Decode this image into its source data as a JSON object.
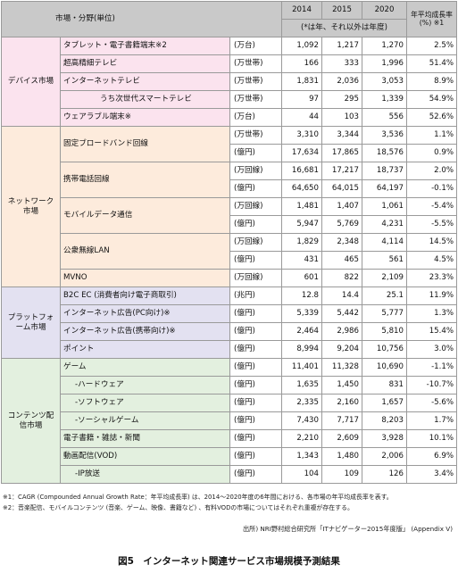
{
  "header": {
    "title": "市場・分野(単位)",
    "years": [
      "2014",
      "2015",
      "2020"
    ],
    "subnote": "(*は年、それ以外は年度)",
    "cagr": "年平均成長率(%) ※1"
  },
  "colors": {
    "device": "#fbe3ee",
    "network": "#fdebdc",
    "platform": "#e3e1f1",
    "content": "#e3f0df",
    "header": "#c9c9c9"
  },
  "device": {
    "label": "デバイス市場",
    "rows": [
      {
        "name": "タブレット・電子書籍端末※2",
        "unit": "(万台)",
        "v14": "1,092",
        "v15": "1,217",
        "v20": "1,270",
        "cagr": "2.5%"
      },
      {
        "name": "超高精細テレビ",
        "unit": "(万世帯)",
        "v14": "166",
        "v15": "333",
        "v20": "1,996",
        "cagr": "51.4%"
      },
      {
        "name": "インターネットテレビ",
        "unit": "(万世帯)",
        "v14": "1,831",
        "v15": "2,036",
        "v20": "3,053",
        "cagr": "8.9%"
      },
      {
        "name": "うち次世代スマートテレビ",
        "unit": "(万世帯)",
        "v14": "97",
        "v15": "295",
        "v20": "1,339",
        "cagr": "54.9%"
      },
      {
        "name": "ウェアラブル端末※",
        "unit": "(万台)",
        "v14": "44",
        "v15": "103",
        "v20": "556",
        "cagr": "52.6%"
      }
    ]
  },
  "network": {
    "label": "ネットワーク市場",
    "rows": [
      {
        "name": "固定ブロードバンド回線",
        "unit": "(万世帯)",
        "v14": "3,310",
        "v15": "3,344",
        "v20": "3,536",
        "cagr": "1.1%"
      },
      {
        "name": "",
        "unit": "(億円)",
        "v14": "17,634",
        "v15": "17,865",
        "v20": "18,576",
        "cagr": "0.9%"
      },
      {
        "name": "携帯電話回線",
        "unit": "(万回線)",
        "v14": "16,681",
        "v15": "17,217",
        "v20": "18,737",
        "cagr": "2.0%"
      },
      {
        "name": "",
        "unit": "(億円)",
        "v14": "64,650",
        "v15": "64,015",
        "v20": "64,197",
        "cagr": "-0.1%"
      },
      {
        "name": "モバイルデータ通信",
        "unit": "(万回線)",
        "v14": "1,481",
        "v15": "1,407",
        "v20": "1,061",
        "cagr": "-5.4%"
      },
      {
        "name": "",
        "unit": "(億円)",
        "v14": "5,947",
        "v15": "5,769",
        "v20": "4,231",
        "cagr": "-5.5%"
      },
      {
        "name": "公衆無線LAN",
        "unit": "(万回線)",
        "v14": "1,829",
        "v15": "2,348",
        "v20": "4,114",
        "cagr": "14.5%"
      },
      {
        "name": "",
        "unit": "(億円)",
        "v14": "431",
        "v15": "465",
        "v20": "561",
        "cagr": "4.5%"
      },
      {
        "name": "MVNO",
        "unit": "(万回線)",
        "v14": "601",
        "v15": "822",
        "v20": "2,109",
        "cagr": "23.3%"
      }
    ]
  },
  "platform": {
    "label": "プラットフォーム市場",
    "rows": [
      {
        "name": "B2C EC (消費者向け電子商取引)",
        "unit": "(兆円)",
        "v14": "12.8",
        "v15": "14.4",
        "v20": "25.1",
        "cagr": "11.9%"
      },
      {
        "name": "インターネット広告(PC向け)※",
        "unit": "(億円)",
        "v14": "5,339",
        "v15": "5,442",
        "v20": "5,777",
        "cagr": "1.3%"
      },
      {
        "name": "インターネット広告(携帯向け)※",
        "unit": "(億円)",
        "v14": "2,464",
        "v15": "2,986",
        "v20": "5,810",
        "cagr": "15.4%"
      },
      {
        "name": "ポイント",
        "unit": "(億円)",
        "v14": "8,994",
        "v15": "9,204",
        "v20": "10,756",
        "cagr": "3.0%"
      }
    ]
  },
  "content": {
    "label": "コンテンツ配信市場",
    "rows": [
      {
        "name": "ゲーム",
        "unit": "(億円)",
        "v14": "11,401",
        "v15": "11,328",
        "v20": "10,690",
        "cagr": "-1.1%"
      },
      {
        "name": "-ハードウェア",
        "unit": "(億円)",
        "v14": "1,635",
        "v15": "1,450",
        "v20": "831",
        "cagr": "-10.7%"
      },
      {
        "name": "-ソフトウェア",
        "unit": "(億円)",
        "v14": "2,335",
        "v15": "2,160",
        "v20": "1,657",
        "cagr": "-5.6%"
      },
      {
        "name": "-ソーシャルゲーム",
        "unit": "(億円)",
        "v14": "7,430",
        "v15": "7,717",
        "v20": "8,203",
        "cagr": "1.7%"
      },
      {
        "name": "電子書籍・雑誌・新聞",
        "unit": "(億円)",
        "v14": "2,210",
        "v15": "2,609",
        "v20": "3,928",
        "cagr": "10.1%"
      },
      {
        "name": "動画配信(VOD)",
        "unit": "(億円)",
        "v14": "1,343",
        "v15": "1,480",
        "v20": "2,006",
        "cagr": "6.9%"
      },
      {
        "name": "-IP放送",
        "unit": "(億円)",
        "v14": "104",
        "v15": "109",
        "v20": "126",
        "cagr": "3.4%"
      }
    ]
  },
  "footnotes": [
    "※1：CAGR (Compounded Annual Growth Rate：年平均成長率) は、2014～2020年度の6年間における、各市場の年平均成長率を表す。",
    "※2：音楽配信、モバイルコンテンツ (音楽、ゲーム、映像、書籍など) 、有料VODの市場についてはそれぞれ重複が存在する。"
  ],
  "source": "出所) NRI野村総合研究所「ITナビゲーター2015年度版」 (Appendix V)",
  "caption": "図5　インターネット関連サービス市場規模予測結果"
}
